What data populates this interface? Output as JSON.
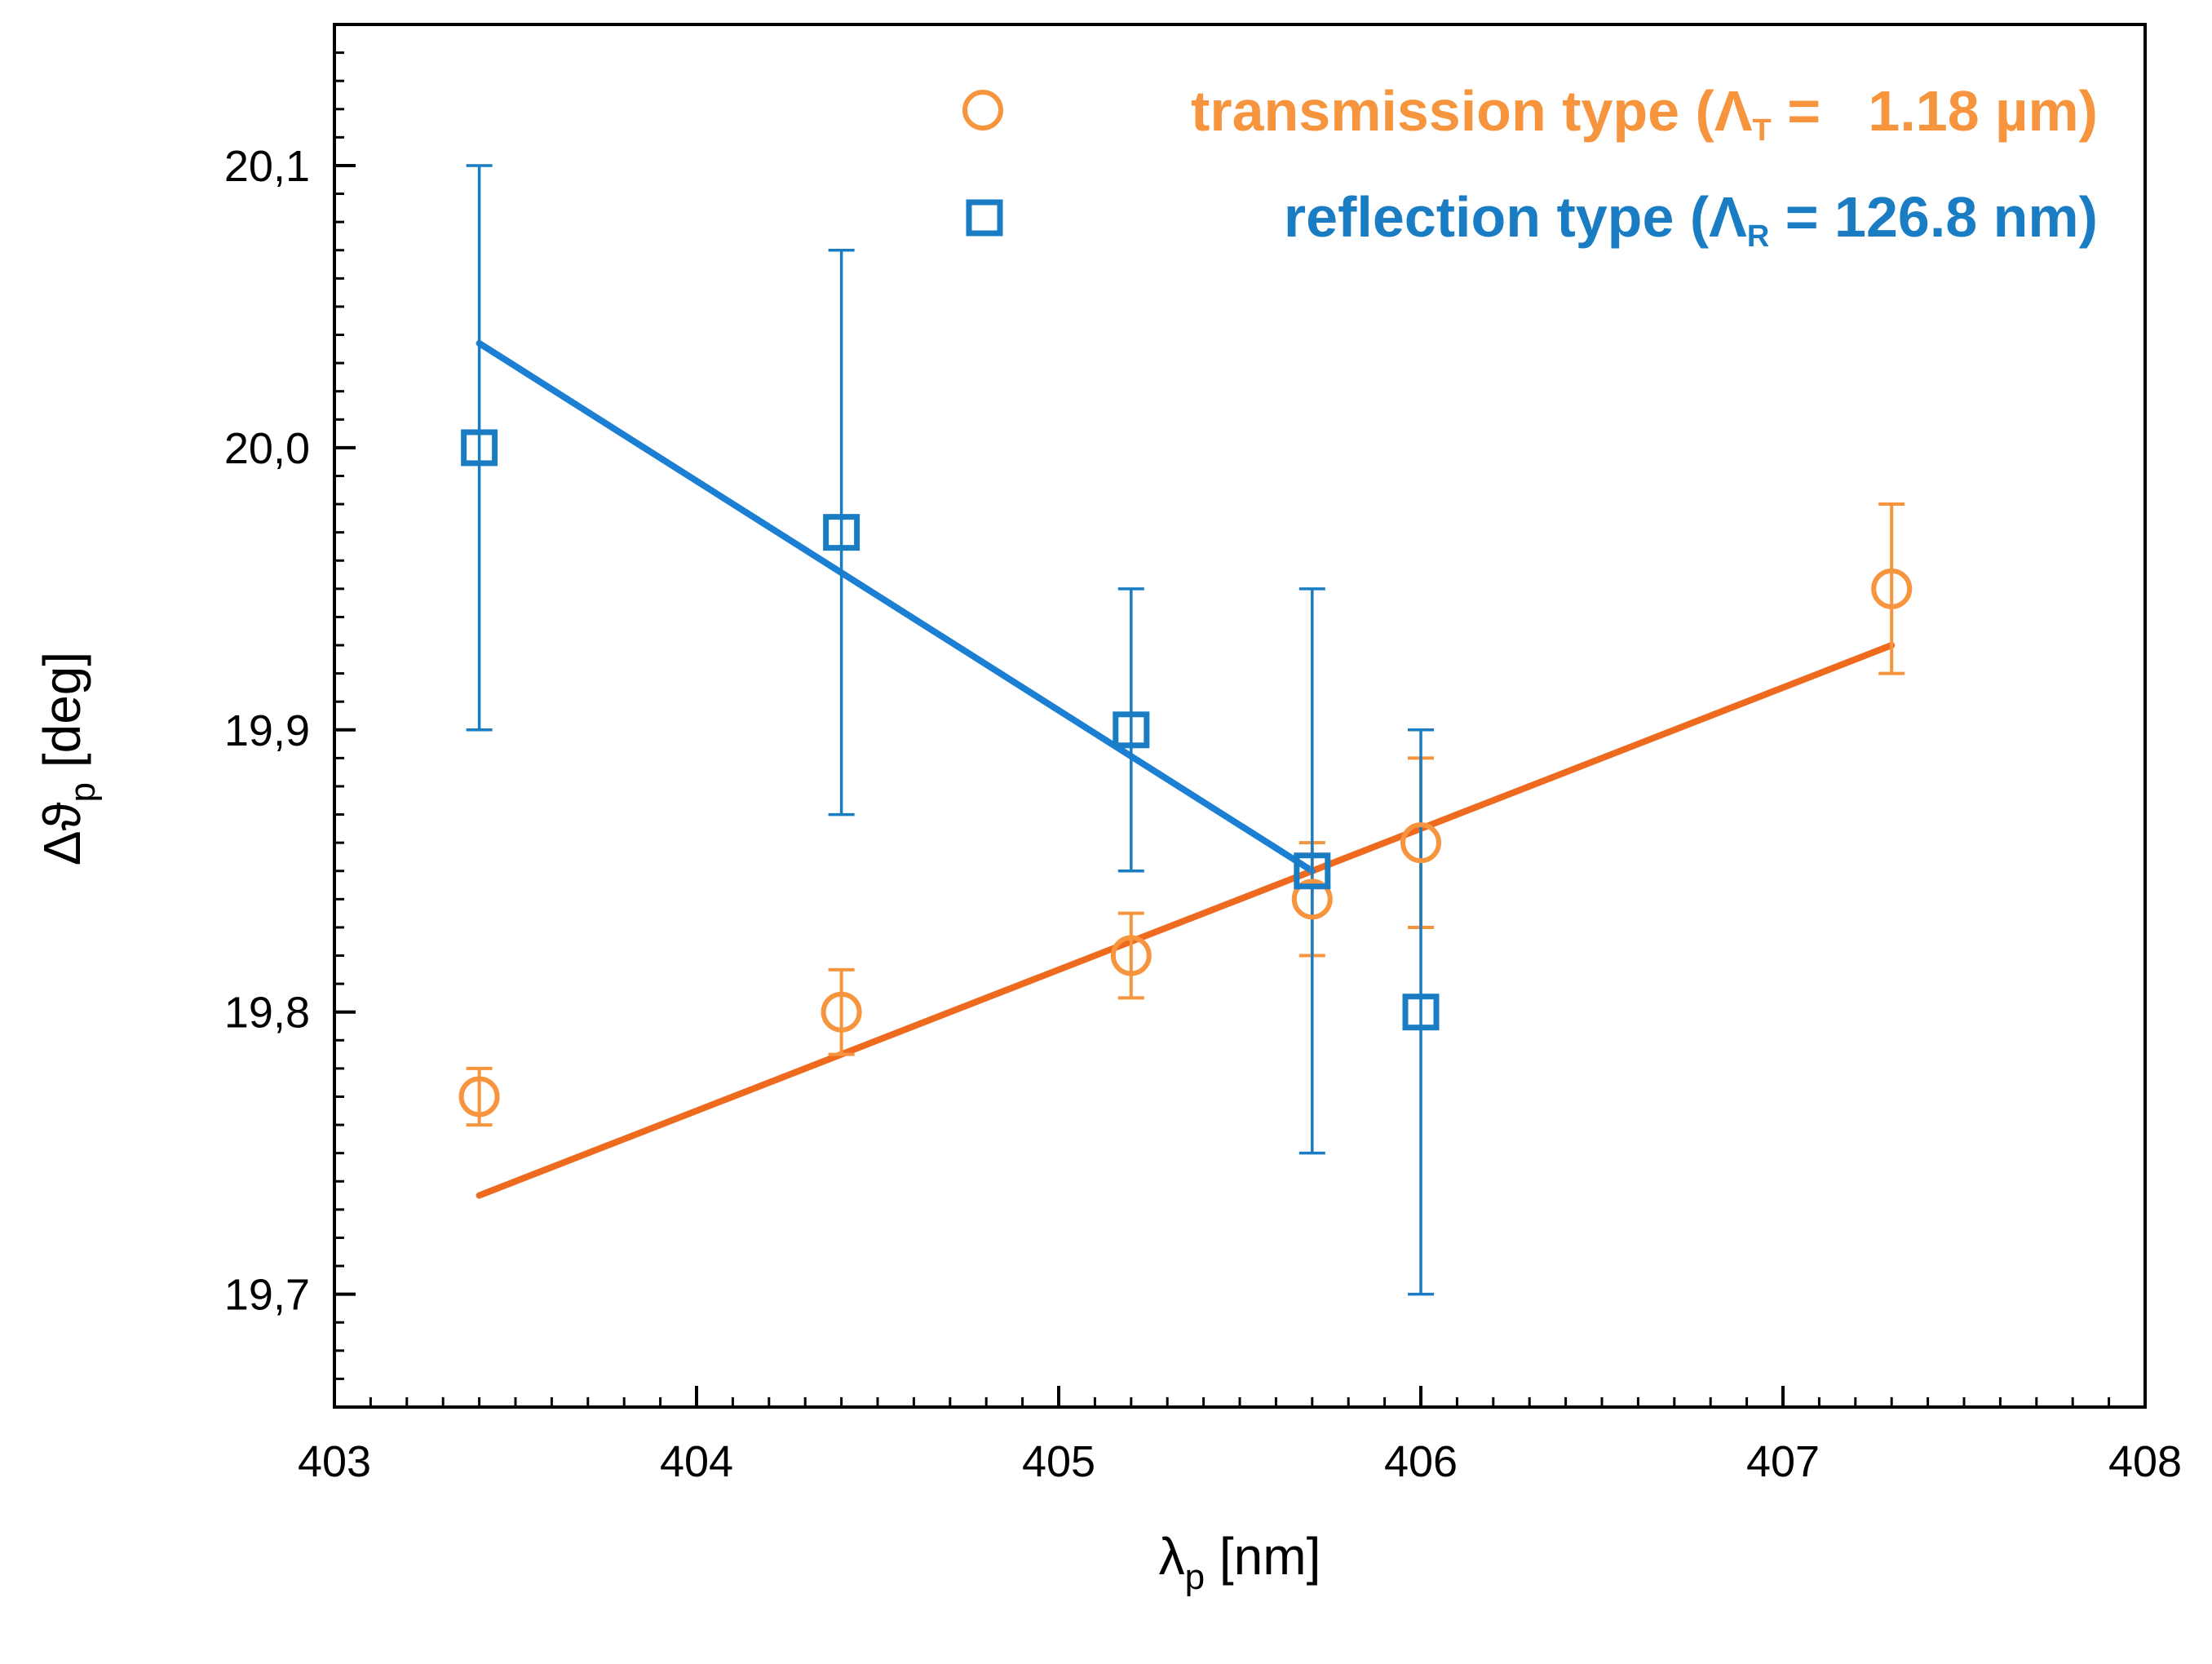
{
  "chart_data": {
    "type": "scatter",
    "xlabel": "λp [nm]",
    "xlabel_parts": {
      "main": "λ",
      "sub": "p",
      "rest": " [nm]"
    },
    "ylabel": "Δϑp [deg]",
    "ylabel_parts": {
      "main": "Δϑ",
      "sub": "p",
      "rest": " [deg]"
    },
    "xlim": [
      403,
      408
    ],
    "ylim": [
      19.66,
      20.15
    ],
    "x_ticks": [
      403,
      404,
      405,
      406,
      407,
      408
    ],
    "x_tick_labels": [
      "403",
      "404",
      "405",
      "406",
      "407",
      "408"
    ],
    "y_ticks": [
      19.7,
      19.8,
      19.9,
      20.0,
      20.1
    ],
    "y_tick_labels": [
      "19,7",
      "19,8",
      "19,9",
      "20,0",
      "20,1"
    ],
    "grid": false,
    "legend_position": "top-right",
    "series": [
      {
        "name": "transmission type (ΛT = 1.18 µm)",
        "legend_parts": {
          "pre": "transmission type (Λ",
          "sub": "T",
          "post": " =   1.18 µm)"
        },
        "marker": "circle",
        "color": "#F7943E",
        "fit_color": "#EE6A1E",
        "points": [
          {
            "x": 403.4,
            "y": 19.77,
            "err": 0.01
          },
          {
            "x": 404.4,
            "y": 19.8,
            "err": 0.015
          },
          {
            "x": 405.2,
            "y": 19.82,
            "err": 0.015
          },
          {
            "x": 405.7,
            "y": 19.84,
            "err": 0.02
          },
          {
            "x": 406.0,
            "y": 19.86,
            "err": 0.03
          },
          {
            "x": 407.3,
            "y": 19.95,
            "err": 0.03
          }
        ],
        "fit": {
          "x": [
            403.4,
            407.3
          ],
          "y": [
            19.735,
            19.93
          ]
        }
      },
      {
        "name": "reflection type (ΛR = 126.8 nm)",
        "legend_parts": {
          "pre": "reflection type (Λ",
          "sub": "R",
          "post": " = 126.8 nm)"
        },
        "marker": "square",
        "color": "#1A7DC4",
        "fit_color": "#1B7FD4",
        "points": [
          {
            "x": 403.4,
            "y": 20.0,
            "err": 0.1
          },
          {
            "x": 404.4,
            "y": 19.97,
            "err": 0.1
          },
          {
            "x": 405.2,
            "y": 19.9,
            "err": 0.05
          },
          {
            "x": 405.7,
            "y": 19.85,
            "err": 0.1
          },
          {
            "x": 406.0,
            "y": 19.8,
            "err": 0.1
          }
        ],
        "fit": {
          "x": [
            403.4,
            405.7
          ],
          "y": [
            20.037,
            19.85
          ]
        }
      }
    ]
  }
}
